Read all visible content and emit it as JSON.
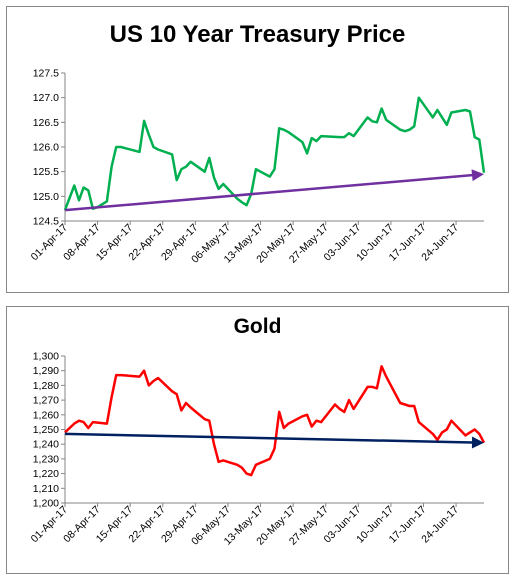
{
  "chart_data": [
    {
      "type": "line",
      "title": "US 10 Year Treasury Price",
      "xlabel": "",
      "ylabel": "",
      "ylim": [
        124.5,
        127.5
      ],
      "yticks": [
        "124.5",
        "125.0",
        "125.5",
        "126.0",
        "126.5",
        "127.0",
        "127.5"
      ],
      "xlim": [
        "2017-04-01",
        "2017-06-30"
      ],
      "xticks": [
        "01-Apr-17",
        "08-Apr-17",
        "15-Apr-17",
        "22-Apr-17",
        "29-Apr-17",
        "06-May-17",
        "13-May-17",
        "20-May-17",
        "27-May-17",
        "03-Jun-17",
        "10-Jun-17",
        "17-Jun-17",
        "24-Jun-17"
      ],
      "grid": false,
      "legend": "none",
      "series": [
        {
          "color": "#00b050",
          "x": [
            "2017-04-01",
            "2017-04-03",
            "2017-04-04",
            "2017-04-05",
            "2017-04-06",
            "2017-04-07",
            "2017-04-08",
            "2017-04-10",
            "2017-04-11",
            "2017-04-12",
            "2017-04-13",
            "2017-04-17",
            "2017-04-18",
            "2017-04-19",
            "2017-04-20",
            "2017-04-21",
            "2017-04-24",
            "2017-04-25",
            "2017-04-26",
            "2017-04-27",
            "2017-04-28",
            "2017-05-01",
            "2017-05-02",
            "2017-05-03",
            "2017-05-04",
            "2017-05-05",
            "2017-05-08",
            "2017-05-09",
            "2017-05-10",
            "2017-05-11",
            "2017-05-12",
            "2017-05-15",
            "2017-05-16",
            "2017-05-17",
            "2017-05-18",
            "2017-05-19",
            "2017-05-22",
            "2017-05-23",
            "2017-05-24",
            "2017-05-25",
            "2017-05-26",
            "2017-05-30",
            "2017-05-31",
            "2017-06-01",
            "2017-06-02",
            "2017-06-05",
            "2017-06-06",
            "2017-06-07",
            "2017-06-08",
            "2017-06-09",
            "2017-06-12",
            "2017-06-13",
            "2017-06-14",
            "2017-06-15",
            "2017-06-16",
            "2017-06-19",
            "2017-06-20",
            "2017-06-21",
            "2017-06-22",
            "2017-06-23",
            "2017-06-26",
            "2017-06-27",
            "2017-06-28",
            "2017-06-29",
            "2017-06-30"
          ],
          "y": [
            124.72,
            125.22,
            124.92,
            125.18,
            125.12,
            124.75,
            124.78,
            124.9,
            125.6,
            126.0,
            126.0,
            125.9,
            126.53,
            126.25,
            126.0,
            125.95,
            125.85,
            125.33,
            125.55,
            125.6,
            125.7,
            125.5,
            125.78,
            125.38,
            125.15,
            125.25,
            124.95,
            124.88,
            124.82,
            125.05,
            125.55,
            125.4,
            125.55,
            126.38,
            126.35,
            126.3,
            126.1,
            125.87,
            126.18,
            126.12,
            126.22,
            126.2,
            126.2,
            126.28,
            126.22,
            126.6,
            126.52,
            126.5,
            126.78,
            126.55,
            126.35,
            126.32,
            126.35,
            126.42,
            127.0,
            126.6,
            126.75,
            126.6,
            126.45,
            126.7,
            126.75,
            126.72,
            126.2,
            126.15,
            125.48
          ]
        },
        {
          "color": "#7030a0",
          "name": "",
          "x": [
            "2017-04-01",
            "2017-06-30"
          ],
          "y": [
            124.72,
            125.45
          ]
        }
      ]
    },
    {
      "type": "line",
      "title": "Gold",
      "xlabel": "",
      "ylabel": "",
      "ylim": [
        1200,
        1300
      ],
      "yticks": [
        "1,200",
        "1,210",
        "1,220",
        "1,230",
        "1,240",
        "1,250",
        "1,260",
        "1,270",
        "1,280",
        "1,290",
        "1,300"
      ],
      "xlim": [
        "2017-04-01",
        "2017-06-30"
      ],
      "xticks": [
        "01-Apr-17",
        "08-Apr-17",
        "15-Apr-17",
        "22-Apr-17",
        "29-Apr-17",
        "06-May-17",
        "13-May-17",
        "20-May-17",
        "27-May-17",
        "03-Jun-17",
        "10-Jun-17",
        "17-Jun-17",
        "24-Jun-17"
      ],
      "grid": false,
      "legend": "none",
      "series": [
        {
          "color": "#ff0000",
          "x": [
            "2017-04-01",
            "2017-04-03",
            "2017-04-04",
            "2017-04-05",
            "2017-04-06",
            "2017-04-07",
            "2017-04-10",
            "2017-04-11",
            "2017-04-12",
            "2017-04-13",
            "2017-04-17",
            "2017-04-18",
            "2017-04-19",
            "2017-04-20",
            "2017-04-21",
            "2017-04-24",
            "2017-04-25",
            "2017-04-26",
            "2017-04-27",
            "2017-04-28",
            "2017-05-01",
            "2017-05-02",
            "2017-05-03",
            "2017-05-04",
            "2017-05-05",
            "2017-05-08",
            "2017-05-09",
            "2017-05-10",
            "2017-05-11",
            "2017-05-12",
            "2017-05-15",
            "2017-05-16",
            "2017-05-17",
            "2017-05-18",
            "2017-05-19",
            "2017-05-22",
            "2017-05-23",
            "2017-05-24",
            "2017-05-25",
            "2017-05-26",
            "2017-05-29",
            "2017-05-30",
            "2017-05-31",
            "2017-06-01",
            "2017-06-02",
            "2017-06-05",
            "2017-06-06",
            "2017-06-07",
            "2017-06-08",
            "2017-06-09",
            "2017-06-12",
            "2017-06-13",
            "2017-06-14",
            "2017-06-15",
            "2017-06-16",
            "2017-06-19",
            "2017-06-20",
            "2017-06-21",
            "2017-06-22",
            "2017-06-23",
            "2017-06-26",
            "2017-06-27",
            "2017-06-28",
            "2017-06-29",
            "2017-06-30"
          ],
          "y": [
            1248,
            1254,
            1256,
            1255,
            1251,
            1255,
            1254,
            1272,
            1287,
            1287,
            1286,
            1290,
            1280,
            1283,
            1285,
            1276,
            1274,
            1263,
            1268,
            1265,
            1257,
            1256,
            1240,
            1228,
            1229,
            1226,
            1224,
            1220,
            1219,
            1226,
            1230,
            1237,
            1262,
            1251,
            1254,
            1259,
            1260,
            1252,
            1256,
            1255,
            1267,
            1264,
            1262,
            1270,
            1264,
            1279,
            1279,
            1278,
            1293,
            1286,
            1268,
            1267,
            1266,
            1266,
            1255,
            1247,
            1243,
            1248,
            1250,
            1256,
            1246,
            1248,
            1250,
            1247,
            1241
          ]
        },
        {
          "color": "#002060",
          "name": "",
          "x": [
            "2017-04-01",
            "2017-06-30"
          ],
          "y": [
            1247,
            1241
          ]
        }
      ]
    }
  ]
}
